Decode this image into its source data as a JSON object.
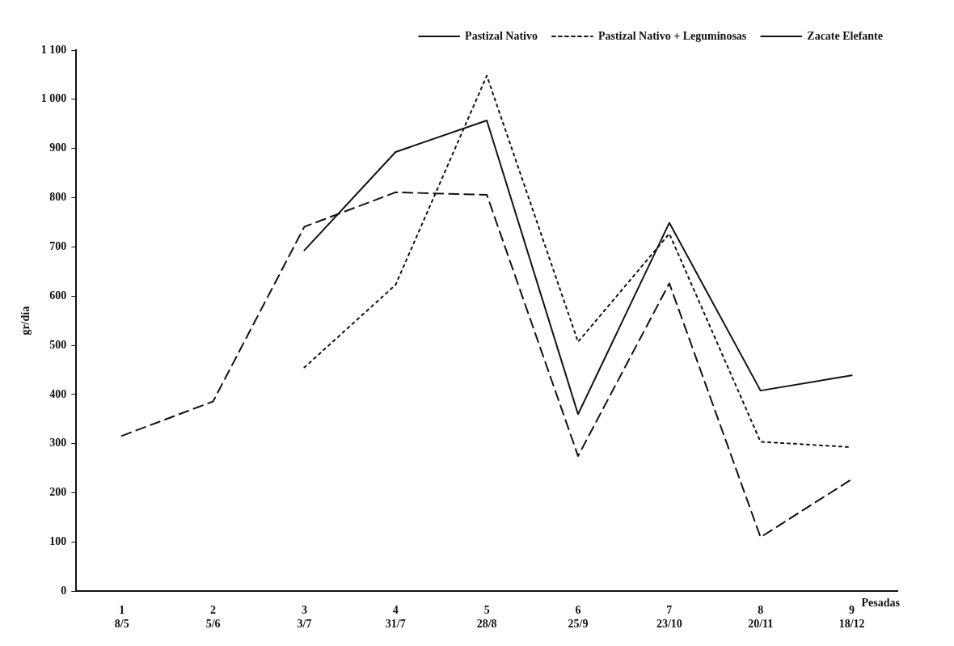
{
  "chart_data": {
    "type": "line",
    "categories": [
      "1\n8/5",
      "2\n5/6",
      "3\n3/7",
      "4\n31/7",
      "5\n28/8",
      "6\n25/9",
      "7\n23/10",
      "8\n20/11",
      "9\n18/12"
    ],
    "xlabel": "Pesadas",
    "ylabel": "gr/día",
    "ylim": [
      0,
      1100
    ],
    "yticks": [
      0,
      100,
      200,
      300,
      400,
      500,
      600,
      700,
      800,
      900,
      {
        "value": 1000,
        "label": "1 000"
      },
      {
        "value": 1100,
        "label": "1 100"
      }
    ],
    "grid": false,
    "legend": "top right",
    "marker": "none",
    "series": [
      {
        "name": "Pastizal Nativo",
        "color": "#111111",
        "line_style": "dashed",
        "values": [
          316,
          386,
          741,
          811,
          806,
          275,
          626,
          110,
          228
        ]
      },
      {
        "name": "Pastizal Nativo + Leguminosas",
        "color": "#111111",
        "line_style": "dotted",
        "values": [
          null,
          null,
          455,
          623,
          1048,
          507,
          727,
          304,
          293
        ]
      },
      {
        "name": "Zacate Elefante",
        "color": "#111111",
        "line_style": "solid",
        "values": [
          null,
          null,
          693,
          893,
          957,
          360,
          749,
          408,
          439
        ]
      }
    ]
  }
}
